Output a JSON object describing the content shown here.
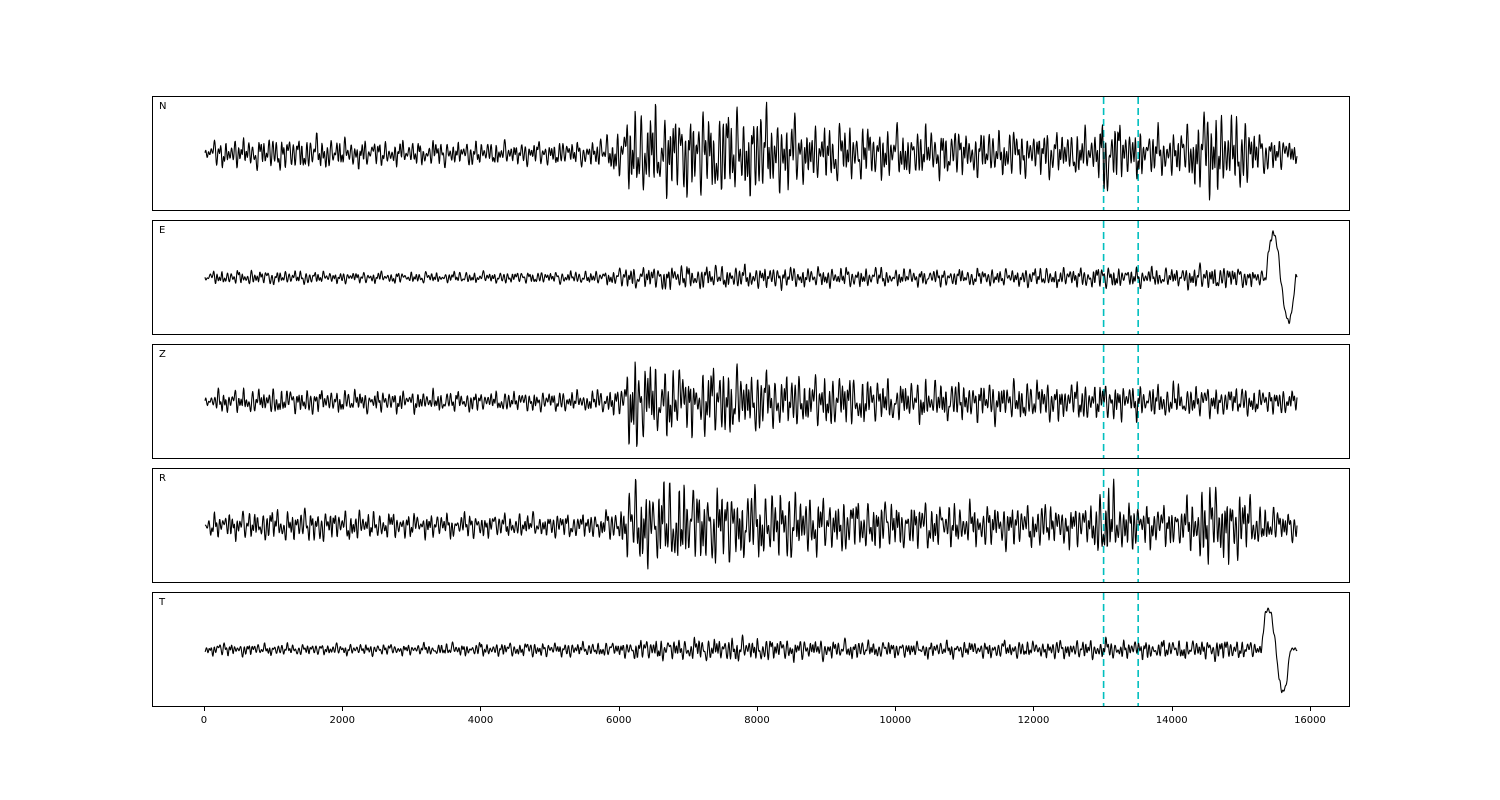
{
  "chart_data": {
    "type": "line",
    "title": "",
    "description": "Five-component seismogram waveform plot (matplotlib style) with stacked trace panels N, E, Z, R, T, black traces, and two dashed cyan vertical marker lines across all panels.",
    "line_color": "#000000",
    "vline_color": "#00bfbf",
    "vlines": [
      13000,
      13500
    ],
    "x_range": [
      -752,
      16550
    ],
    "data_x_range": [
      0,
      15800
    ],
    "xticks": [
      0,
      2000,
      4000,
      6000,
      8000,
      10000,
      12000,
      14000,
      16000
    ],
    "ylabel": "",
    "xlabel": "",
    "grid": false,
    "legend": "none",
    "noise_wavelengths": [
      42,
      70,
      115,
      210,
      400
    ],
    "noise_amps": [
      1.0,
      0.8,
      0.55,
      0.35,
      0.3
    ],
    "sample_step": 6,
    "panels": [
      {
        "label": "N",
        "seed": 11,
        "data_end": 15800,
        "envelope": [
          [
            0,
            2
          ],
          [
            120,
            9
          ],
          [
            800,
            11
          ],
          [
            1600,
            12
          ],
          [
            2500,
            9
          ],
          [
            3500,
            9
          ],
          [
            4500,
            8
          ],
          [
            5600,
            9
          ],
          [
            5900,
            14
          ],
          [
            6150,
            30
          ],
          [
            6500,
            34
          ],
          [
            7000,
            30
          ],
          [
            7600,
            32
          ],
          [
            8200,
            30
          ],
          [
            8700,
            22
          ],
          [
            9500,
            20
          ],
          [
            10500,
            18
          ],
          [
            11500,
            16
          ],
          [
            12400,
            16
          ],
          [
            12900,
            17
          ],
          [
            13040,
            34
          ],
          [
            13200,
            22
          ],
          [
            13600,
            18
          ],
          [
            14100,
            16
          ],
          [
            14400,
            30
          ],
          [
            14700,
            32
          ],
          [
            15000,
            26
          ],
          [
            15300,
            14
          ],
          [
            15600,
            11
          ],
          [
            15800,
            9
          ]
        ],
        "end_swing": null
      },
      {
        "label": "E",
        "seed": 22,
        "data_end": 15800,
        "envelope": [
          [
            0,
            2
          ],
          [
            150,
            5
          ],
          [
            1000,
            5
          ],
          [
            2000,
            4
          ],
          [
            3000,
            4
          ],
          [
            4000,
            4
          ],
          [
            5000,
            4
          ],
          [
            5800,
            5
          ],
          [
            6200,
            8
          ],
          [
            6800,
            9
          ],
          [
            7400,
            8
          ],
          [
            8000,
            8
          ],
          [
            8600,
            7
          ],
          [
            9500,
            7
          ],
          [
            10500,
            6
          ],
          [
            11500,
            6
          ],
          [
            12500,
            7
          ],
          [
            13000,
            8
          ],
          [
            13500,
            7
          ],
          [
            14000,
            7
          ],
          [
            14500,
            9
          ],
          [
            14900,
            8
          ],
          [
            15200,
            6
          ],
          [
            15400,
            4
          ],
          [
            15800,
            2
          ]
        ],
        "end_swing": {
          "x0": 15350,
          "period": 430,
          "amp": 44
        }
      },
      {
        "label": "Z",
        "seed": 33,
        "data_end": 15800,
        "envelope": [
          [
            0,
            2
          ],
          [
            120,
            8
          ],
          [
            1000,
            9
          ],
          [
            2000,
            8
          ],
          [
            3000,
            8
          ],
          [
            4000,
            7
          ],
          [
            5000,
            7
          ],
          [
            5700,
            8
          ],
          [
            6050,
            12
          ],
          [
            6180,
            38
          ],
          [
            6400,
            30
          ],
          [
            6700,
            26
          ],
          [
            7100,
            22
          ],
          [
            7400,
            28
          ],
          [
            7800,
            24
          ],
          [
            8200,
            20
          ],
          [
            8700,
            18
          ],
          [
            9200,
            20
          ],
          [
            9700,
            16
          ],
          [
            10500,
            15
          ],
          [
            11500,
            14
          ],
          [
            12500,
            14
          ],
          [
            13200,
            13
          ],
          [
            14000,
            12
          ],
          [
            15000,
            10
          ],
          [
            15800,
            8
          ]
        ],
        "end_swing": null
      },
      {
        "label": "R",
        "seed": 44,
        "data_end": 15800,
        "envelope": [
          [
            0,
            2
          ],
          [
            120,
            9
          ],
          [
            900,
            11
          ],
          [
            1800,
            11
          ],
          [
            2800,
            9
          ],
          [
            3800,
            9
          ],
          [
            4800,
            8
          ],
          [
            5700,
            9
          ],
          [
            6000,
            13
          ],
          [
            6200,
            30
          ],
          [
            6700,
            32
          ],
          [
            7300,
            28
          ],
          [
            7900,
            26
          ],
          [
            8400,
            24
          ],
          [
            9000,
            19
          ],
          [
            10000,
            18
          ],
          [
            11000,
            16
          ],
          [
            12000,
            15
          ],
          [
            12800,
            15
          ],
          [
            13040,
            32
          ],
          [
            13250,
            20
          ],
          [
            13700,
            16
          ],
          [
            14100,
            15
          ],
          [
            14400,
            28
          ],
          [
            14750,
            30
          ],
          [
            15050,
            22
          ],
          [
            15350,
            13
          ],
          [
            15800,
            10
          ]
        ],
        "end_swing": null
      },
      {
        "label": "T",
        "seed": 55,
        "data_end": 15800,
        "envelope": [
          [
            0,
            2
          ],
          [
            150,
            5
          ],
          [
            1000,
            4
          ],
          [
            2000,
            4
          ],
          [
            3000,
            4
          ],
          [
            4000,
            5
          ],
          [
            5000,
            5
          ],
          [
            5900,
            5
          ],
          [
            6400,
            8
          ],
          [
            7000,
            8
          ],
          [
            7600,
            9
          ],
          [
            8200,
            8
          ],
          [
            9000,
            7
          ],
          [
            10000,
            6
          ],
          [
            11000,
            6
          ],
          [
            12000,
            6
          ],
          [
            12800,
            7
          ],
          [
            13400,
            7
          ],
          [
            14200,
            7
          ],
          [
            14800,
            8
          ],
          [
            15100,
            6
          ],
          [
            15300,
            4
          ],
          [
            15800,
            2
          ]
        ],
        "end_swing": {
          "x0": 15280,
          "period": 420,
          "amp": 42
        }
      }
    ]
  },
  "layout_meta": {
    "panel_count": "5"
  }
}
